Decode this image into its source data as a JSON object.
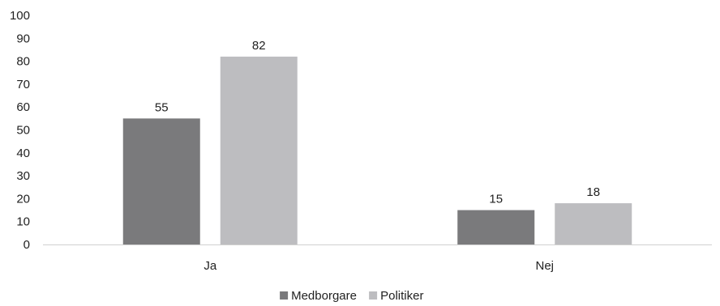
{
  "chart_data": {
    "type": "bar",
    "title": "",
    "xlabel": "",
    "ylabel": "",
    "categories": [
      "Ja",
      "Nej"
    ],
    "series": [
      {
        "name": "Medborgare",
        "color": "#7a7a7c",
        "values": [
          55,
          15
        ]
      },
      {
        "name": "Politiker",
        "color": "#bdbdc0",
        "values": [
          82,
          18
        ]
      }
    ],
    "ylim": [
      0,
      100
    ],
    "yticks": [
      0,
      10,
      20,
      30,
      40,
      50,
      60,
      70,
      80,
      90,
      100
    ],
    "grid": false,
    "legend_position": "bottom-center",
    "data_labels": true
  }
}
